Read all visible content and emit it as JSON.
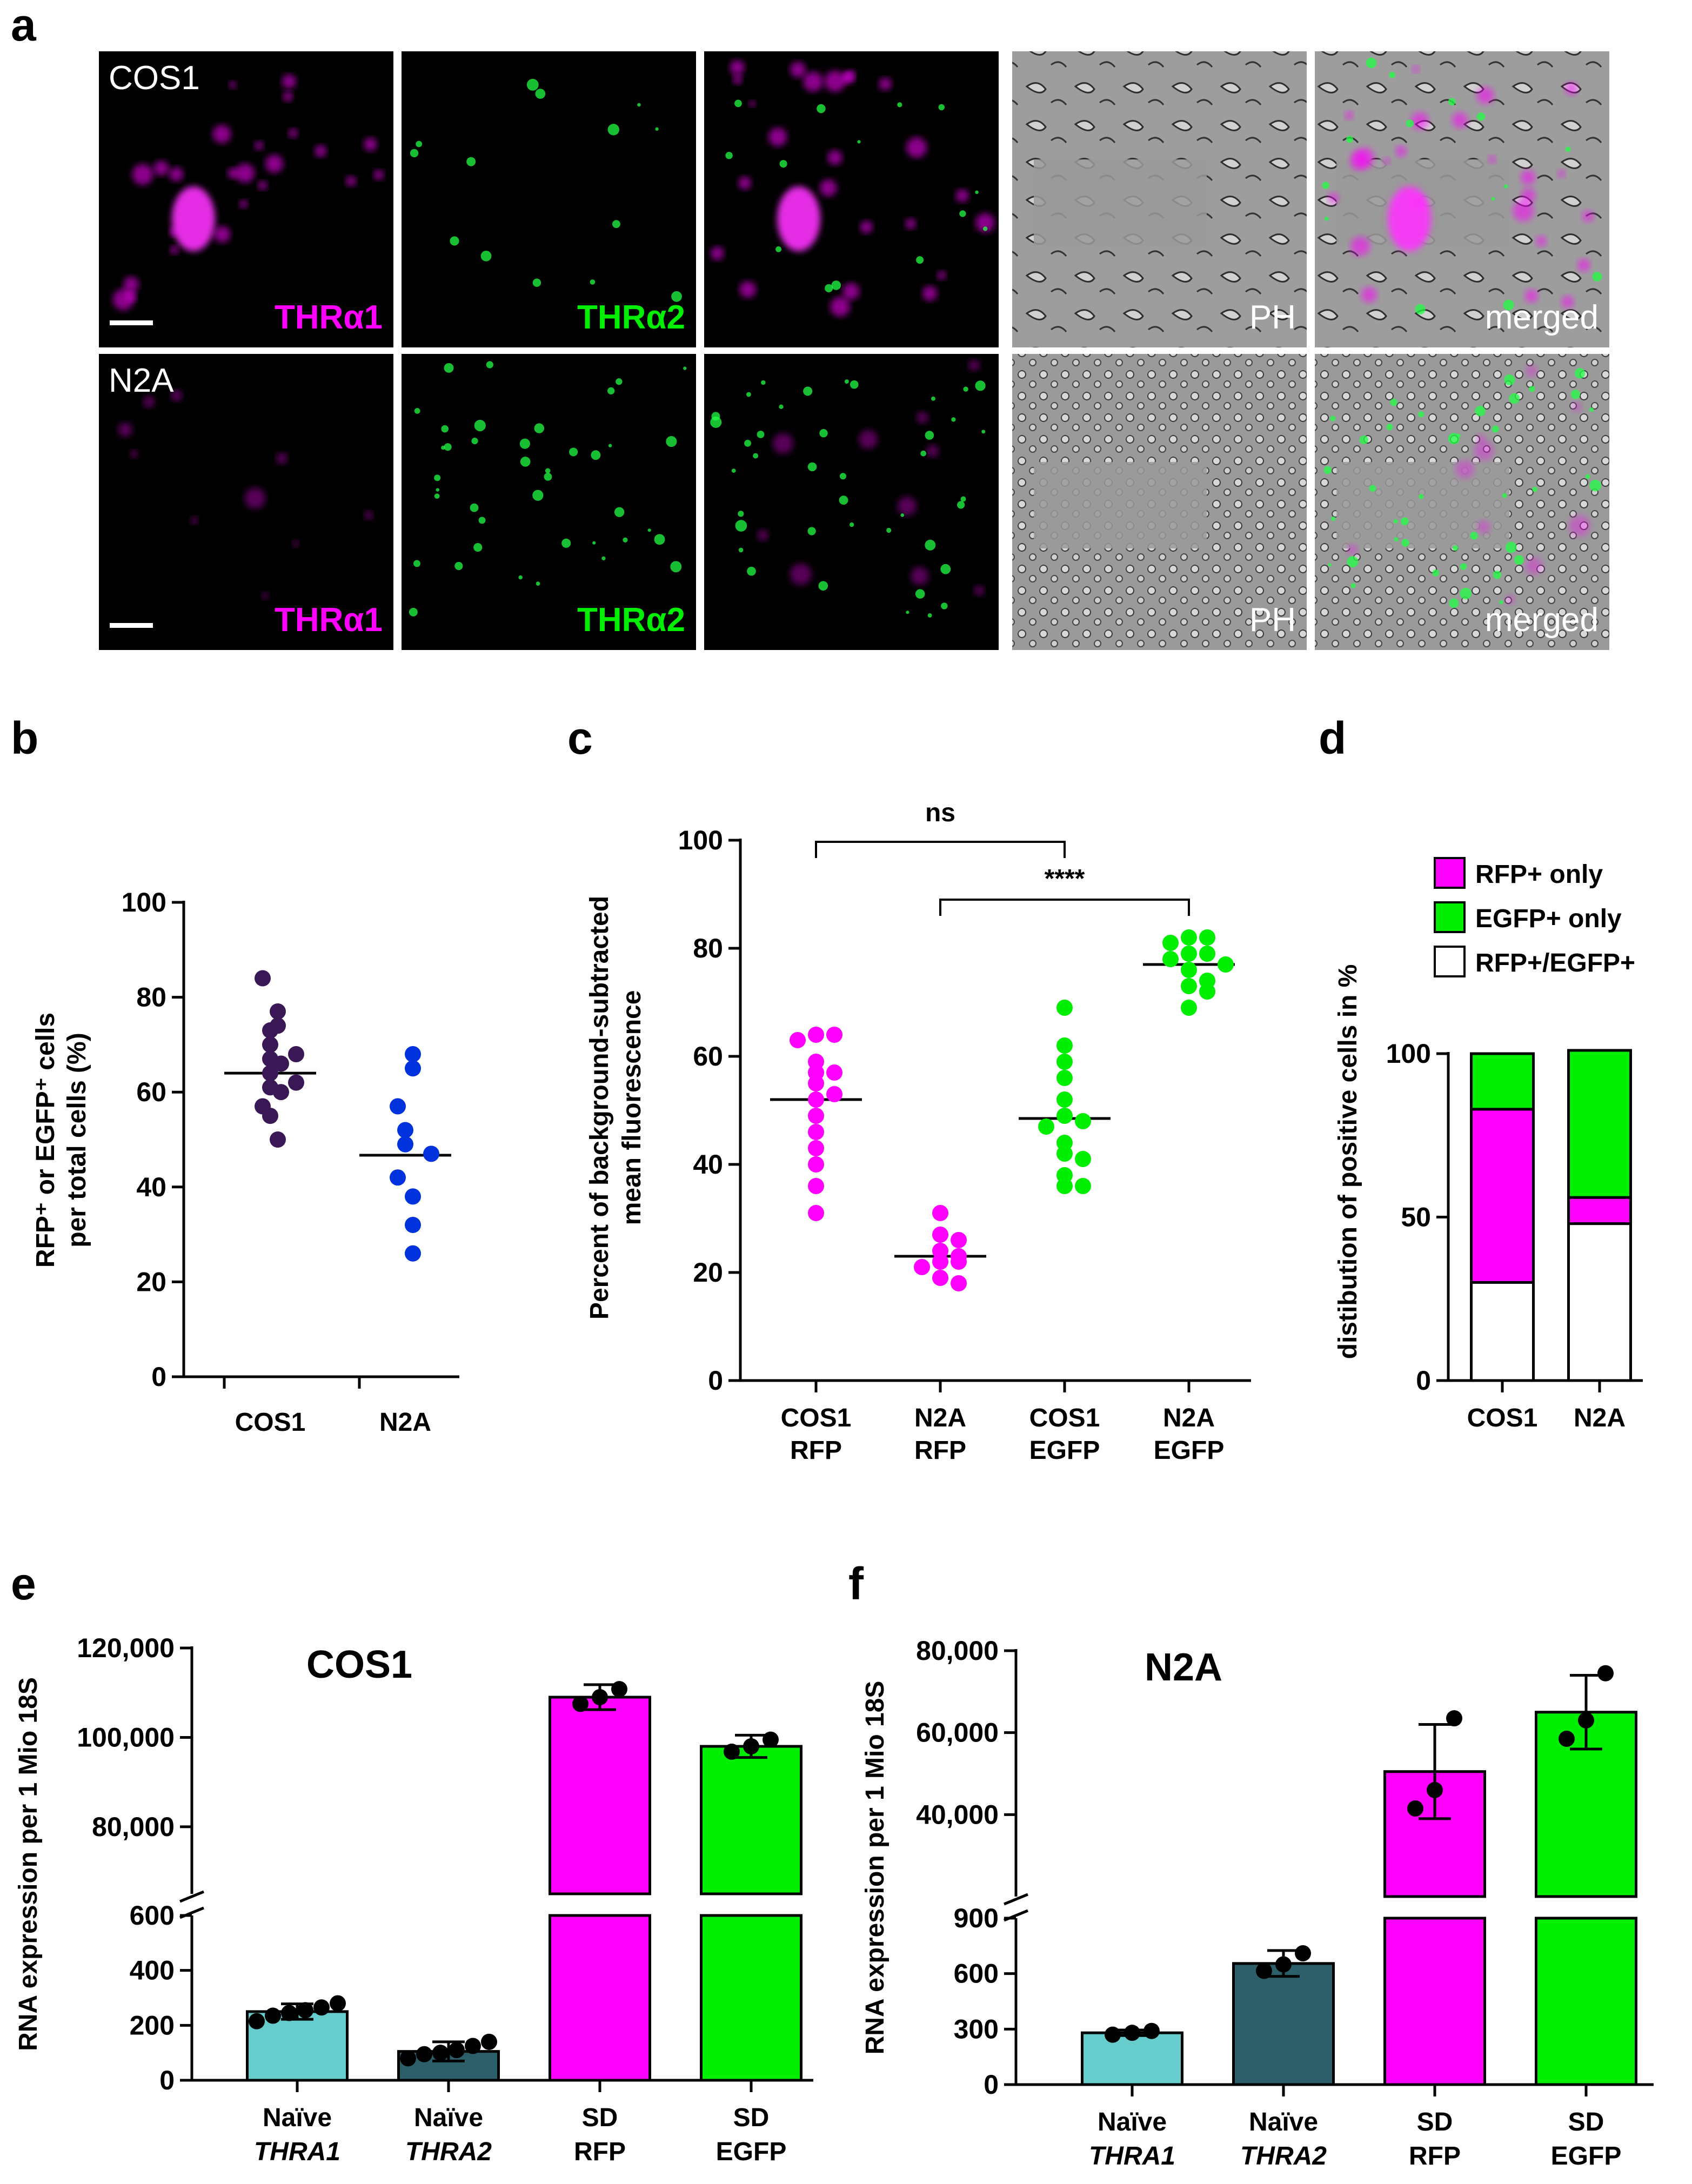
{
  "panel_labels": {
    "a": "a",
    "b": "b",
    "c": "c",
    "d": "d",
    "e": "e",
    "f": "f"
  },
  "colors": {
    "magenta": "#ff00ff",
    "green": "#00ee00",
    "dark_purple": "#3a1856",
    "blue": "#0033dd",
    "light_teal": "#66cccc",
    "dark_teal": "#2d5f6b",
    "black": "#000000"
  },
  "micrographs": {
    "rows": [
      {
        "cell": "COS1",
        "labels": [
          "THRα1",
          "THRα2",
          "",
          "PH",
          "merged"
        ]
      },
      {
        "cell": "N2A",
        "labels": [
          "THRα1",
          "THRα2",
          "",
          "PH",
          "merged"
        ]
      }
    ]
  },
  "chart_data": [
    {
      "panel": "b",
      "type": "scatter",
      "categories": [
        "COS1",
        "N2A"
      ],
      "ylabel_line1": "RFP⁺ or EGFP⁺ cells",
      "ylabel_line2": "per total cells (%)",
      "ylim": [
        0,
        100
      ],
      "yticks": [
        0,
        20,
        40,
        60,
        80,
        100
      ],
      "tick_labels": [
        "0",
        "20",
        "40",
        "60",
        "80",
        "100"
      ],
      "series": [
        {
          "category": "COS1",
          "color": "#3a1856",
          "mean": 64,
          "values": [
            84,
            77,
            74,
            73,
            70,
            68,
            67,
            66,
            64,
            62,
            61,
            60,
            57,
            55,
            50
          ]
        },
        {
          "category": "N2A",
          "color": "#0033dd",
          "mean": 46.7,
          "values": [
            68,
            65,
            57,
            52,
            49,
            47,
            42,
            38,
            32,
            26
          ]
        }
      ]
    },
    {
      "panel": "c",
      "type": "scatter",
      "categories": [
        "COS1",
        "N2A",
        "COS1",
        "N2A"
      ],
      "categories_line2": [
        "RFP",
        "RFP",
        "EGFP",
        "EGFP"
      ],
      "ylabel_line1": "Percent of background-subtracted",
      "ylabel_line2": "mean fluorescence",
      "ylim": [
        0,
        100
      ],
      "yticks": [
        0,
        20,
        40,
        60,
        80,
        100
      ],
      "tick_labels": [
        "0",
        "20",
        "40",
        "60",
        "80",
        "100"
      ],
      "series": [
        {
          "category": "COS1 RFP",
          "color": "#ff00ff",
          "mean": 52,
          "values": [
            64,
            64,
            63,
            59,
            57,
            57,
            55,
            53,
            52,
            49,
            46,
            43,
            40,
            36,
            31
          ]
        },
        {
          "category": "N2A RFP",
          "color": "#ff00ff",
          "mean": 23,
          "values": [
            31,
            27,
            26,
            24,
            23,
            22,
            22,
            21,
            19,
            18
          ]
        },
        {
          "category": "COS1 EGFP",
          "color": "#00ee00",
          "mean": 48.5,
          "values": [
            69,
            62,
            59,
            56,
            52,
            49,
            48,
            47,
            44,
            42,
            41,
            38,
            36,
            36
          ]
        },
        {
          "category": "N2A EGFP",
          "color": "#00ee00",
          "mean": 77,
          "values": [
            82,
            82,
            81,
            79,
            79,
            78,
            77,
            76,
            74,
            73,
            72,
            69
          ]
        }
      ],
      "annotations": [
        {
          "text": "ns",
          "from": 0,
          "to": 2
        },
        {
          "text": "****",
          "from": 1,
          "to": 3
        }
      ]
    },
    {
      "panel": "d",
      "type": "bar",
      "stacked": true,
      "categories": [
        "COS1",
        "N2A"
      ],
      "ylabel": "distibution of positive cells in %",
      "ylim": [
        0,
        100
      ],
      "yticks": [
        0,
        50,
        100
      ],
      "tick_labels": [
        "0",
        "50",
        "100"
      ],
      "legend_position": "top",
      "series": [
        {
          "name": "RFP+/EGFP+",
          "color": "#ffffff",
          "values": [
            30,
            48
          ]
        },
        {
          "name": "RFP+ only",
          "color": "#ff00ff",
          "values": [
            53,
            8
          ]
        },
        {
          "name": "EGFP+ only",
          "color": "#00ee00",
          "values": [
            17,
            45
          ]
        }
      ],
      "legend_order": [
        "RFP+ only",
        "EGFP+ only",
        "RFP+/EGFP+"
      ]
    },
    {
      "panel": "e",
      "type": "bar",
      "title": "COS1",
      "categories_line1": [
        "Naïve",
        "Naïve",
        "SD",
        "SD"
      ],
      "categories_line2": [
        "THRA1",
        "THRA2",
        "RFP",
        "EGFP"
      ],
      "ylabel": "RNA expression per 1 Mio 18S",
      "broken_axis": true,
      "lower_ylim": [
        0,
        600
      ],
      "lower_ticks": [
        0,
        200,
        400,
        600
      ],
      "lower_tick_labels": [
        "0",
        "200",
        "400",
        "600"
      ],
      "upper_ylim": [
        65000,
        120000
      ],
      "upper_ticks": [
        80000,
        100000,
        120000
      ],
      "upper_tick_labels": [
        "80,000",
        "100,000",
        "120,000"
      ],
      "series": [
        {
          "category": "Naïve THRA1",
          "color": "#66cccc",
          "mean": 250,
          "sd": 28,
          "points": [
            215,
            235,
            245,
            255,
            265,
            280
          ]
        },
        {
          "category": "Naïve THRA2",
          "color": "#2d5f6b",
          "mean": 105,
          "sd": 35,
          "points": [
            80,
            95,
            100,
            110,
            125,
            140
          ]
        },
        {
          "category": "SD RFP",
          "color": "#ff00ff",
          "mean": 109000,
          "sd": 2800,
          "points": [
            107500,
            109000,
            110800
          ]
        },
        {
          "category": "SD EGFP",
          "color": "#00ee00",
          "mean": 98000,
          "sd": 2500,
          "points": [
            96800,
            98000,
            99500
          ]
        }
      ]
    },
    {
      "panel": "f",
      "type": "bar",
      "title": "N2A",
      "categories_line1": [
        "Naïve",
        "Naïve",
        "SD",
        "SD"
      ],
      "categories_line2": [
        "THRA1",
        "THRA2",
        "RFP",
        "EGFP"
      ],
      "ylabel": "RNA expression per 1 Mio 18S",
      "broken_axis": true,
      "lower_ylim": [
        0,
        900
      ],
      "lower_ticks": [
        0,
        300,
        600,
        900
      ],
      "lower_tick_labels": [
        "0",
        "300",
        "600",
        "900"
      ],
      "upper_ylim": [
        20000,
        80000
      ],
      "upper_ticks": [
        40000,
        60000,
        80000
      ],
      "upper_tick_labels": [
        "40,000",
        "60,000",
        "80,000"
      ],
      "series": [
        {
          "category": "Naïve THRA1",
          "color": "#66cccc",
          "mean": 280,
          "sd": 15,
          "points": [
            270,
            280,
            290
          ]
        },
        {
          "category": "Naïve THRA2",
          "color": "#2d5f6b",
          "mean": 655,
          "sd": 70,
          "points": [
            615,
            650,
            710
          ]
        },
        {
          "category": "SD RFP",
          "color": "#ff00ff",
          "mean": 50500,
          "sd": 11500,
          "points": [
            41500,
            46000,
            63500
          ]
        },
        {
          "category": "SD EGFP",
          "color": "#00ee00",
          "mean": 65000,
          "sd": 9000,
          "points": [
            58500,
            63000,
            74500
          ]
        }
      ]
    }
  ]
}
